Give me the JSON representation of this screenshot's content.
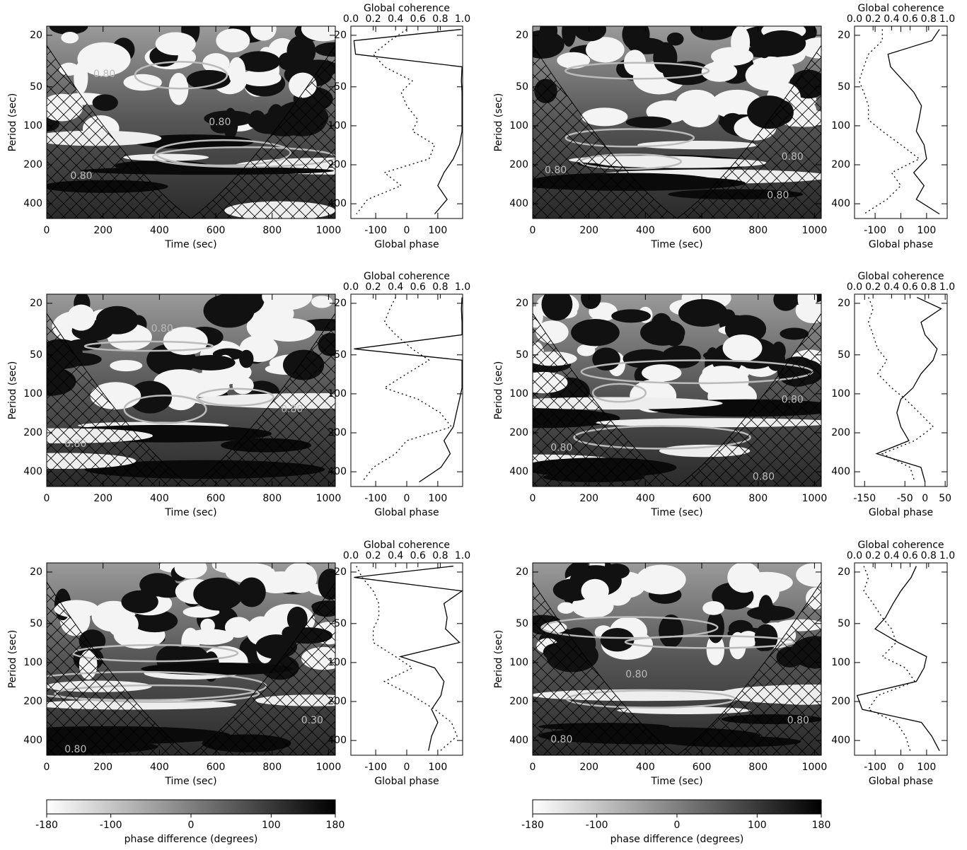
{
  "chart_data": [
    {
      "type": "heatmap",
      "xlabel": "Time (sec)",
      "ylabel": "Period (sec)",
      "xlim": [
        0,
        1024
      ],
      "xticks": [
        0,
        200,
        400,
        600,
        800,
        1000
      ],
      "ylim": [
        17,
        520
      ],
      "yticks": [
        20,
        50,
        100,
        200,
        400
      ],
      "log_y": true,
      "annotations": [
        "0.80",
        "0.80",
        "0.80"
      ]
    },
    {
      "type": "line",
      "title": "Global coherence",
      "xlabel": "Global phase",
      "xlim": [
        -180,
        180
      ],
      "xticks": [
        -100,
        0,
        100
      ],
      "x2lim": [
        0,
        1
      ],
      "x2ticks": [
        {
          "value": 0,
          "label": "0.0"
        },
        {
          "value": 0.2,
          "label": "0.2"
        },
        {
          "value": 0.4,
          "label": "0.4"
        },
        {
          "value": 0.6,
          "label": "0.6"
        },
        {
          "value": 0.8,
          "label": "0.8"
        },
        {
          "value": 1,
          "label": "1.0"
        }
      ],
      "ylim": [
        17,
        520
      ],
      "yticks": [
        20,
        50,
        100,
        200,
        400
      ],
      "log_y": true,
      "y": [
        18,
        22,
        28,
        35,
        45,
        55,
        70,
        90,
        110,
        140,
        180,
        230,
        290,
        370,
        480
      ],
      "series": [
        {
          "color": "#000000",
          "values": [
            175,
            -170,
            -165,
            178,
            176,
            178,
            178,
            178,
            178,
            170,
            150,
            120,
            100,
            130,
            90
          ]
        },
        {
          "color": "#000000",
          "axis": "x2",
          "dash": "dotted",
          "values": [
            0.5,
            0.35,
            0.2,
            0.3,
            0.55,
            0.45,
            0.5,
            0.6,
            0.55,
            0.75,
            0.7,
            0.3,
            0.45,
            0.15,
            0.05
          ]
        }
      ]
    },
    {
      "type": "heatmap",
      "xlabel": "Time (sec)",
      "ylabel": "Period (sec)",
      "xlim": [
        0,
        1024
      ],
      "xticks": [
        0,
        200,
        400,
        600,
        800,
        1000
      ],
      "ylim": [
        17,
        520
      ],
      "yticks": [
        20,
        50,
        100,
        200,
        400
      ],
      "log_y": true,
      "annotations": [
        "0.80",
        "0.80",
        "0.80"
      ]
    },
    {
      "type": "line",
      "title": "Global coherence",
      "xlabel": "Global phase",
      "xlim": [
        -180,
        180
      ],
      "xticks": [
        -100,
        0,
        100
      ],
      "x2lim": [
        0,
        1
      ],
      "x2ticks": [
        {
          "value": 0,
          "label": "0.0"
        },
        {
          "value": 0.2,
          "label": "0.2"
        },
        {
          "value": 0.4,
          "label": "0.4"
        },
        {
          "value": 0.6,
          "label": "0.6"
        },
        {
          "value": 0.8,
          "label": "0.8"
        },
        {
          "value": 1,
          "label": "1.0"
        }
      ],
      "ylim": [
        17,
        520
      ],
      "yticks": [
        20,
        50,
        100,
        200,
        400
      ],
      "log_y": true,
      "y": [
        18,
        22,
        28,
        35,
        45,
        55,
        70,
        90,
        110,
        140,
        180,
        230,
        290,
        370,
        480
      ],
      "series": [
        {
          "color": "#000000",
          "values": [
            150,
            120,
            -50,
            -40,
            10,
            50,
            80,
            70,
            60,
            90,
            100,
            50,
            90,
            60,
            150
          ]
        },
        {
          "color": "#000000",
          "axis": "x2",
          "dash": "dotted",
          "values": [
            0.3,
            0.3,
            0.15,
            0.1,
            0.05,
            0.1,
            0.15,
            0.15,
            0.3,
            0.5,
            0.7,
            0.4,
            0.5,
            0.35,
            0.1
          ]
        }
      ]
    },
    {
      "type": "heatmap",
      "xlabel": "Time (sec)",
      "ylabel": "Period (sec)",
      "xlim": [
        0,
        1024
      ],
      "xticks": [
        0,
        200,
        400,
        600,
        800,
        1000
      ],
      "ylim": [
        17,
        520
      ],
      "yticks": [
        20,
        50,
        100,
        200,
        400
      ],
      "log_y": true,
      "annotations": [
        "0.80",
        "0.80",
        "0.80"
      ]
    },
    {
      "type": "line",
      "title": "Global coherence",
      "xlabel": "Global phase",
      "xlim": [
        -180,
        180
      ],
      "xticks": [
        -100,
        0,
        100
      ],
      "x2lim": [
        0,
        1
      ],
      "x2ticks": [
        {
          "value": 0,
          "label": "0.0"
        },
        {
          "value": 0.2,
          "label": "0.2"
        },
        {
          "value": 0.4,
          "label": "0.4"
        },
        {
          "value": 0.6,
          "label": "0.6"
        },
        {
          "value": 0.8,
          "label": "0.8"
        },
        {
          "value": 1,
          "label": "1.0"
        }
      ],
      "ylim": [
        17,
        520
      ],
      "yticks": [
        20,
        50,
        100,
        200,
        400
      ],
      "log_y": true,
      "y": [
        18,
        22,
        28,
        35,
        45,
        55,
        70,
        90,
        110,
        140,
        180,
        230,
        290,
        370,
        480
      ],
      "series": [
        {
          "color": "#000000",
          "values": [
            178,
            176,
            178,
            178,
            -170,
            178,
            178,
            178,
            170,
            160,
            150,
            120,
            140,
            110,
            40
          ]
        },
        {
          "color": "#000000",
          "axis": "x2",
          "dash": "dotted",
          "values": [
            0.4,
            0.35,
            0.3,
            0.4,
            0.55,
            0.7,
            0.5,
            0.3,
            0.6,
            0.8,
            0.9,
            0.5,
            0.4,
            0.2,
            0.1
          ]
        }
      ]
    },
    {
      "type": "heatmap",
      "xlabel": "Time (sec)",
      "ylabel": "Period (sec)",
      "xlim": [
        0,
        1024
      ],
      "xticks": [
        0,
        200,
        400,
        600,
        800,
        1000
      ],
      "ylim": [
        17,
        520
      ],
      "yticks": [
        20,
        50,
        100,
        200,
        400
      ],
      "log_y": true,
      "annotations": [
        "0.80",
        "0.80",
        "0.80"
      ]
    },
    {
      "type": "line",
      "title": "Global coherence",
      "xlabel": "Global phase",
      "xlim": [
        -175,
        55
      ],
      "xticks": [
        -150,
        -50,
        0,
        50
      ],
      "x2lim": [
        0,
        1
      ],
      "x2ticks": [
        {
          "value": 0,
          "label": "0.0"
        },
        {
          "value": 0.2,
          "label": "0.2"
        },
        {
          "value": 0.4,
          "label": "0.4"
        },
        {
          "value": 0.6,
          "label": "0.6"
        },
        {
          "value": 0.8,
          "label": "0.8"
        },
        {
          "value": 1,
          "label": "1.0"
        }
      ],
      "ylim": [
        17,
        520
      ],
      "yticks": [
        20,
        50,
        100,
        200,
        400
      ],
      "log_y": true,
      "y": [
        18,
        22,
        28,
        35,
        45,
        55,
        70,
        90,
        110,
        140,
        180,
        230,
        290,
        370,
        480
      ],
      "series": [
        {
          "color": "#000000",
          "values": [
            -20,
            40,
            -10,
            0,
            30,
            20,
            -10,
            -30,
            -60,
            -70,
            -60,
            -40,
            -120,
            -10,
            0
          ]
        },
        {
          "color": "#000000",
          "axis": "x2",
          "dash": "dotted",
          "values": [
            0.15,
            0.2,
            0.15,
            0.2,
            0.25,
            0.35,
            0.25,
            0.4,
            0.55,
            0.7,
            0.85,
            0.65,
            0.3,
            0.6,
            0.65
          ]
        }
      ]
    },
    {
      "type": "heatmap",
      "xlabel": "Time (sec)",
      "ylabel": "Period (sec)",
      "xlim": [
        0,
        1024
      ],
      "xticks": [
        0,
        200,
        400,
        600,
        800,
        1000
      ],
      "ylim": [
        17,
        520
      ],
      "yticks": [
        20,
        50,
        100,
        200,
        400
      ],
      "log_y": true,
      "annotations": [
        "0.30",
        "0.80"
      ]
    },
    {
      "type": "line",
      "title": "Global coherence",
      "xlabel": "Global phase",
      "xlim": [
        -180,
        180
      ],
      "xticks": [
        -100,
        0,
        100
      ],
      "x2lim": [
        0,
        1
      ],
      "x2ticks": [
        {
          "value": 0,
          "label": "0.0"
        },
        {
          "value": 0.2,
          "label": "0.2"
        },
        {
          "value": 0.4,
          "label": "0.4"
        },
        {
          "value": 0.6,
          "label": "0.6"
        },
        {
          "value": 0.8,
          "label": "0.8"
        },
        {
          "value": 1,
          "label": "1.0"
        }
      ],
      "ylim": [
        17,
        520
      ],
      "yticks": [
        20,
        50,
        100,
        200,
        400
      ],
      "log_y": true,
      "y": [
        18,
        22,
        28,
        35,
        45,
        55,
        70,
        90,
        110,
        140,
        180,
        230,
        290,
        370,
        480
      ],
      "series": [
        {
          "color": "#000000",
          "values": [
            150,
            -170,
            178,
            120,
            130,
            125,
            170,
            -20,
            90,
            120,
            110,
            80,
            100,
            80,
            70
          ]
        },
        {
          "color": "#000000",
          "axis": "x2",
          "dash": "dotted",
          "values": [
            0.05,
            0.1,
            0.2,
            0.25,
            0.25,
            0.2,
            0.2,
            0.4,
            0.55,
            0.3,
            0.55,
            0.75,
            0.9,
            0.95,
            0.8
          ]
        }
      ]
    },
    {
      "type": "heatmap",
      "xlabel": "Time (sec)",
      "ylabel": "Period (sec)",
      "xlim": [
        0,
        1024
      ],
      "xticks": [
        0,
        200,
        400,
        600,
        800,
        1000
      ],
      "ylim": [
        17,
        520
      ],
      "yticks": [
        20,
        50,
        100,
        200,
        400
      ],
      "log_y": true,
      "annotations": [
        "0.80",
        "0.80",
        "0.80"
      ]
    },
    {
      "type": "line",
      "title": "Global coherence",
      "xlabel": "Global phase",
      "xlim": [
        -180,
        180
      ],
      "xticks": [
        -100,
        0,
        100
      ],
      "x2lim": [
        0,
        1
      ],
      "x2ticks": [
        {
          "value": 0,
          "label": "0.0"
        },
        {
          "value": 0.2,
          "label": "0.2"
        },
        {
          "value": 0.4,
          "label": "0.4"
        },
        {
          "value": 0.6,
          "label": "0.6"
        },
        {
          "value": 0.8,
          "label": "0.8"
        },
        {
          "value": 1,
          "label": "1.0"
        }
      ],
      "ylim": [
        17,
        520
      ],
      "yticks": [
        20,
        50,
        100,
        200,
        400
      ],
      "log_y": true,
      "y": [
        18,
        22,
        28,
        35,
        45,
        55,
        70,
        90,
        110,
        140,
        180,
        230,
        290,
        370,
        480
      ],
      "series": [
        {
          "color": "#000000",
          "values": [
            60,
            40,
            0,
            -30,
            -60,
            -100,
            -10,
            100,
            90,
            60,
            -170,
            -150,
            80,
            120,
            150
          ]
        },
        {
          "color": "#000000",
          "axis": "x2",
          "dash": "dotted",
          "values": [
            0.1,
            0.15,
            0.1,
            0.2,
            0.3,
            0.4,
            0.45,
            0.3,
            0.55,
            0.65,
            0.25,
            0.15,
            0.45,
            0.55,
            0.6
          ]
        }
      ]
    },
    {
      "type": "colorbar",
      "xlabel": "phase difference (degrees)",
      "xlim": [
        -180,
        180
      ],
      "xticks": [
        -180,
        -100,
        0,
        100,
        180
      ],
      "colors": [
        "#ffffff",
        "#000000"
      ]
    },
    {
      "type": "colorbar",
      "xlabel": "phase difference (degrees)",
      "xlim": [
        -180,
        180
      ],
      "xticks": [
        -180,
        -100,
        0,
        100,
        180
      ],
      "colors": [
        "#ffffff",
        "#000000"
      ]
    }
  ]
}
